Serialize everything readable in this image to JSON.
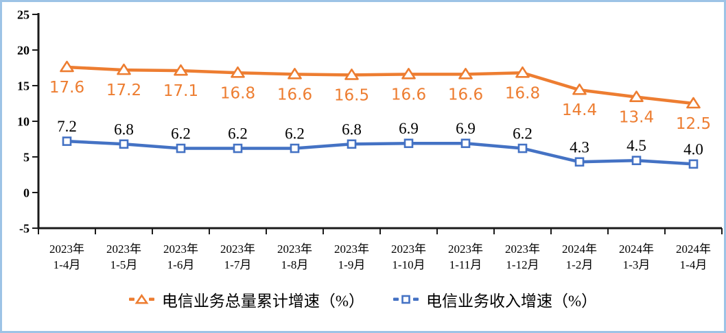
{
  "frame": {
    "border_color": "#9DC3E6",
    "background_color": "#FFFFFF"
  },
  "chart_data": {
    "type": "line",
    "title": "",
    "grid": false,
    "legend_position": "bottom",
    "axis_color": "#1A1A1A",
    "categories": [
      {
        "line1": "2023年",
        "line2": "1-4月"
      },
      {
        "line1": "2023年",
        "line2": "1-5月"
      },
      {
        "line1": "2023年",
        "line2": "1-6月"
      },
      {
        "line1": "2023年",
        "line2": "1-7月"
      },
      {
        "line1": "2023年",
        "line2": "1-8月"
      },
      {
        "line1": "2023年",
        "line2": "1-9月"
      },
      {
        "line1": "2023年",
        "line2": "1-10月"
      },
      {
        "line1": "2023年",
        "line2": "1-11月"
      },
      {
        "line1": "2023年",
        "line2": "1-12月"
      },
      {
        "line1": "2024年",
        "line2": "1-2月"
      },
      {
        "line1": "2024年",
        "line2": "1-3月"
      },
      {
        "line1": "2024年",
        "line2": "1-4月"
      }
    ],
    "y_axis": {
      "min": -5,
      "max": 25,
      "step": 5,
      "tick_labels": [
        "25",
        "20",
        "15",
        "10",
        "5",
        "0",
        "-5"
      ]
    },
    "series": [
      {
        "name": "电信业务总量累计增速（%）",
        "marker": "triangle",
        "color": "#ED7D31",
        "label_color": "#ED7D31",
        "label_position": "below",
        "values": [
          17.6,
          17.2,
          17.1,
          16.8,
          16.6,
          16.5,
          16.6,
          16.6,
          16.8,
          14.4,
          13.4,
          12.5
        ],
        "labels": [
          "17.6",
          "17.2",
          "17.1",
          "16.8",
          "16.6",
          "16.5",
          "16.6",
          "16.6",
          "16.8",
          "14.4",
          "13.4",
          "12.5"
        ]
      },
      {
        "name": "电信业务收入增速（%）",
        "marker": "square",
        "color": "#4472C4",
        "label_color": "#000000",
        "label_position": "above",
        "values": [
          7.2,
          6.8,
          6.2,
          6.2,
          6.2,
          6.8,
          6.9,
          6.9,
          6.2,
          4.3,
          4.5,
          4.0
        ],
        "labels": [
          "7.2",
          "6.8",
          "6.2",
          "6.2",
          "6.2",
          "6.8",
          "6.9",
          "6.9",
          "6.2",
          "4.3",
          "4.5",
          "4.0"
        ]
      }
    ]
  }
}
